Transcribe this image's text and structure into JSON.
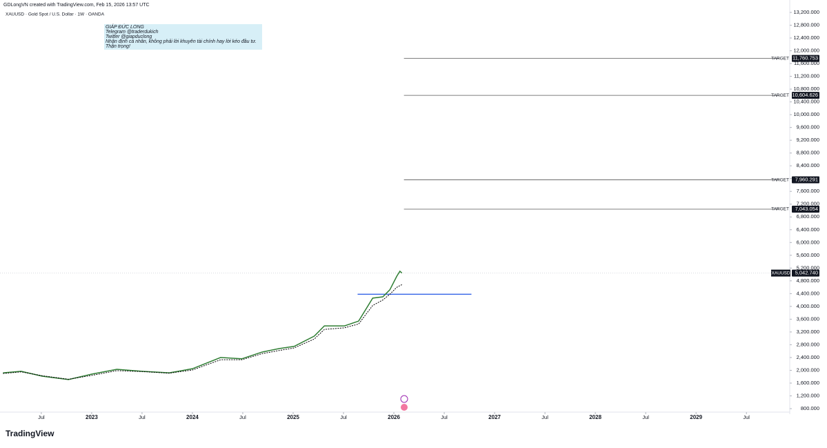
{
  "chart_data": {
    "type": "line",
    "header": "GDLongVN created with TradingView.com, Feb 15, 2026 13:57 UTC",
    "title": "XAUUSD · Gold Spot / U.S. Dollar · 1W · OANDA",
    "annotations": [
      "GIÁP ĐỨC LONG",
      "Telegram @traderdukich",
      "Twitter @giapduclong",
      "Nhận định cá nhân, không phải lời khuyên tài chính hay lời kéo đầu tư.",
      "Thận trọng!"
    ],
    "logo": "TradingView",
    "x": [
      2022.12,
      2022.3,
      2022.51,
      2022.77,
      2023.0,
      2023.25,
      2023.5,
      2023.77,
      2024.0,
      2024.28,
      2024.49,
      2024.69,
      2024.86,
      2025.01,
      2025.21,
      2025.31,
      2025.51,
      2025.65,
      2025.79,
      2025.89,
      2025.96,
      2026.03,
      2026.06,
      2026.08
    ],
    "series": [
      {
        "name": "XAUUSD",
        "color": "#2e7d32",
        "values": [
          1920,
          1970,
          1815,
          1710,
          1880,
          2030,
          1970,
          1920,
          2050,
          2400,
          2360,
          2570,
          2680,
          2750,
          3070,
          3390,
          3390,
          3540,
          4260,
          4300,
          4520,
          4950,
          5100,
          5042.74
        ]
      },
      {
        "color": "#000000",
        "values": [
          1900,
          1950,
          1830,
          1720,
          1840,
          1990,
          1960,
          1910,
          2010,
          2330,
          2330,
          2520,
          2620,
          2700,
          2980,
          3280,
          3330,
          3450,
          4030,
          4200,
          4380,
          4600,
          4650,
          4680
        ]
      }
    ],
    "last_price": {
      "name": "XAUUSD",
      "value": 5042.74,
      "label": "5,042.740",
      "color": "#131722"
    },
    "support": {
      "value": 4380,
      "x": [
        2025.64,
        2026.77
      ],
      "color": "#1e53e5"
    },
    "targets": [
      {
        "label": "TARGET",
        "value": 11760.753,
        "value_label": "11,760.753"
      },
      {
        "label": "TARGET",
        "value": 10604.626,
        "value_label": "10,604.626"
      },
      {
        "label": "TARGET",
        "value": 7960.291,
        "value_label": "7,960.291"
      },
      {
        "label": "TARGET",
        "value": 7043.054,
        "value_label": "7,043.054"
      }
    ],
    "target_x": [
      2026.1,
      2029.83
    ],
    "xlim": [
      2022.09,
      2029.93
    ],
    "xticks": [
      {
        "value": 2022.5,
        "label": "Jul"
      },
      {
        "value": 2023,
        "label": "2023"
      },
      {
        "value": 2023.5,
        "label": "Jul"
      },
      {
        "value": 2024,
        "label": "2024"
      },
      {
        "value": 2024.5,
        "label": "Jul"
      },
      {
        "value": 2025,
        "label": "2025"
      },
      {
        "value": 2025.5,
        "label": "Jul"
      },
      {
        "value": 2026,
        "label": "2026"
      },
      {
        "value": 2026.5,
        "label": "Jul"
      },
      {
        "value": 2027,
        "label": "2027"
      },
      {
        "value": 2027.5,
        "label": "Jul"
      },
      {
        "value": 2028,
        "label": "2028"
      },
      {
        "value": 2028.5,
        "label": "Jul"
      },
      {
        "value": 2029,
        "label": "2029"
      },
      {
        "value": 2029.5,
        "label": "Jul"
      }
    ],
    "ylim": [
      800,
      13200
    ],
    "yticks": [
      {
        "value": 800,
        "label": "800.000"
      },
      {
        "value": 1200,
        "label": "1,200.000"
      },
      {
        "value": 1600,
        "label": "1,600.000"
      },
      {
        "value": 2000,
        "label": "2,000.000"
      },
      {
        "value": 2400,
        "label": "2,400.000"
      },
      {
        "value": 2800,
        "label": "2,800.000"
      },
      {
        "value": 3200,
        "label": "3,200.000"
      },
      {
        "value": 3600,
        "label": "3,600.000"
      },
      {
        "value": 4000,
        "label": "4,000.000"
      },
      {
        "value": 4400,
        "label": "4,400.000"
      },
      {
        "value": 4800,
        "label": "4,800.000"
      },
      {
        "value": 5200,
        "label": "5,200.000"
      },
      {
        "value": 5600,
        "label": "5,600.000"
      },
      {
        "value": 6000,
        "label": "6,000.000"
      },
      {
        "value": 6400,
        "label": "6,400.000"
      },
      {
        "value": 6800,
        "label": "6,800.000"
      },
      {
        "value": 7200,
        "label": "7,200.000"
      },
      {
        "value": 7600,
        "label": "7,600.000"
      },
      {
        "value": 8000,
        "label": "8,000.000"
      },
      {
        "value": 8400,
        "label": "8,400.000"
      },
      {
        "value": 8800,
        "label": "8,800.000"
      },
      {
        "value": 9200,
        "label": "9,200.000"
      },
      {
        "value": 9600,
        "label": "9,600.000"
      },
      {
        "value": 10000,
        "label": "10,000.000"
      },
      {
        "value": 10400,
        "label": "10,400.000"
      },
      {
        "value": 10800,
        "label": "10,800.000"
      },
      {
        "value": 11200,
        "label": "11,200.000"
      },
      {
        "value": 11600,
        "label": "11,600.000"
      },
      {
        "value": 12000,
        "label": "12,000.000"
      },
      {
        "value": 12400,
        "label": "12,400.000"
      },
      {
        "value": 12800,
        "label": "12,800.000"
      },
      {
        "value": 13200,
        "label": "13,200.000"
      }
    ],
    "grid": false
  }
}
